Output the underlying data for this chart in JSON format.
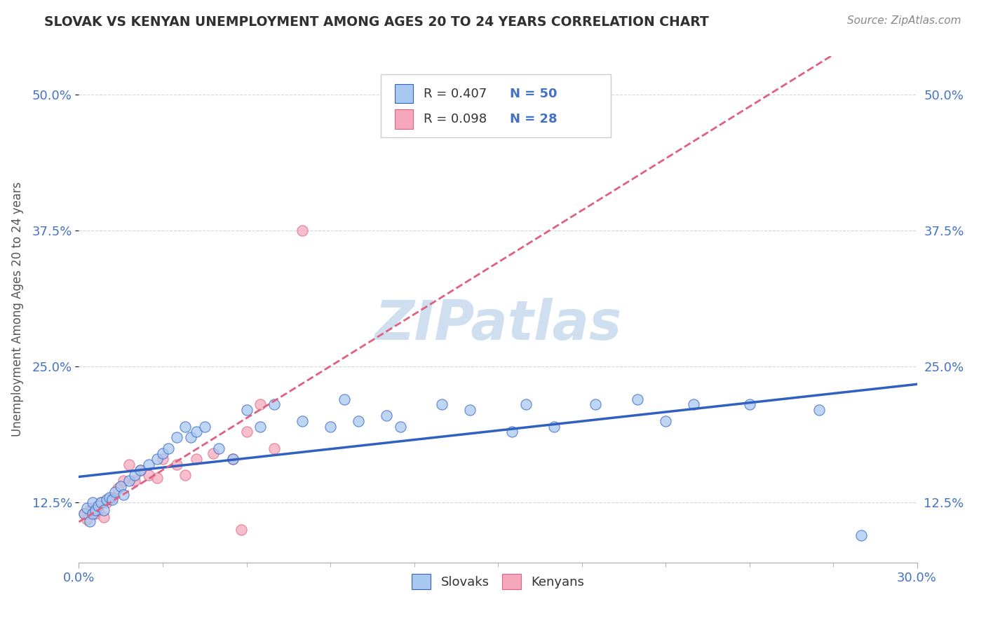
{
  "title": "SLOVAK VS KENYAN UNEMPLOYMENT AMONG AGES 20 TO 24 YEARS CORRELATION CHART",
  "source": "Source: ZipAtlas.com",
  "ylabel": "Unemployment Among Ages 20 to 24 years",
  "xlim": [
    0.0,
    0.3
  ],
  "ylim": [
    0.07,
    0.535
  ],
  "ytick_vals": [
    0.125,
    0.25,
    0.375,
    0.5
  ],
  "ytick_labels": [
    "12.5%",
    "25.0%",
    "37.5%",
    "50.0%"
  ],
  "xtick_vals": [
    0.0,
    0.3
  ],
  "xtick_labels": [
    "0.0%",
    "30.0%"
  ],
  "minor_xticks": [
    0.03,
    0.06,
    0.09,
    0.12,
    0.15,
    0.18,
    0.21,
    0.24,
    0.27
  ],
  "r_slovak": 0.407,
  "n_slovak": 50,
  "r_kenyan": 0.098,
  "n_kenyan": 28,
  "color_slovak": "#A8C8F0",
  "color_kenyan": "#F5A8BC",
  "line_color_slovak": "#3060C0",
  "line_color_kenyan": "#E06080",
  "watermark": "ZIPatlas",
  "watermark_color": "#d0dff0",
  "background_color": "#ffffff",
  "grid_color": "#cccccc",
  "title_color": "#303030",
  "source_color": "#888888",
  "legend_text_color": "#4472C4",
  "slovak_points_x": [
    0.002,
    0.003,
    0.004,
    0.005,
    0.005,
    0.006,
    0.007,
    0.008,
    0.009,
    0.01,
    0.011,
    0.012,
    0.013,
    0.015,
    0.016,
    0.018,
    0.02,
    0.022,
    0.025,
    0.028,
    0.03,
    0.032,
    0.035,
    0.038,
    0.04,
    0.042,
    0.045,
    0.05,
    0.055,
    0.06,
    0.065,
    0.07,
    0.08,
    0.09,
    0.095,
    0.1,
    0.11,
    0.115,
    0.13,
    0.14,
    0.155,
    0.16,
    0.17,
    0.185,
    0.2,
    0.21,
    0.22,
    0.24,
    0.265,
    0.28
  ],
  "slovak_points_y": [
    0.115,
    0.12,
    0.108,
    0.125,
    0.115,
    0.118,
    0.122,
    0.125,
    0.118,
    0.128,
    0.13,
    0.128,
    0.135,
    0.14,
    0.132,
    0.145,
    0.15,
    0.155,
    0.16,
    0.165,
    0.17,
    0.175,
    0.185,
    0.195,
    0.185,
    0.19,
    0.195,
    0.175,
    0.165,
    0.21,
    0.195,
    0.215,
    0.2,
    0.195,
    0.22,
    0.2,
    0.205,
    0.195,
    0.215,
    0.21,
    0.19,
    0.215,
    0.195,
    0.215,
    0.22,
    0.2,
    0.215,
    0.215,
    0.21,
    0.095
  ],
  "kenyan_points_x": [
    0.002,
    0.003,
    0.004,
    0.005,
    0.006,
    0.007,
    0.008,
    0.009,
    0.01,
    0.012,
    0.014,
    0.016,
    0.018,
    0.02,
    0.022,
    0.025,
    0.028,
    0.03,
    0.035,
    0.038,
    0.042,
    0.048,
    0.055,
    0.058,
    0.06,
    0.065,
    0.07,
    0.08
  ],
  "kenyan_points_y": [
    0.115,
    0.11,
    0.118,
    0.12,
    0.115,
    0.118,
    0.125,
    0.112,
    0.125,
    0.13,
    0.138,
    0.145,
    0.16,
    0.145,
    0.155,
    0.15,
    0.148,
    0.165,
    0.16,
    0.15,
    0.165,
    0.17,
    0.165,
    0.1,
    0.19,
    0.215,
    0.175,
    0.375
  ]
}
